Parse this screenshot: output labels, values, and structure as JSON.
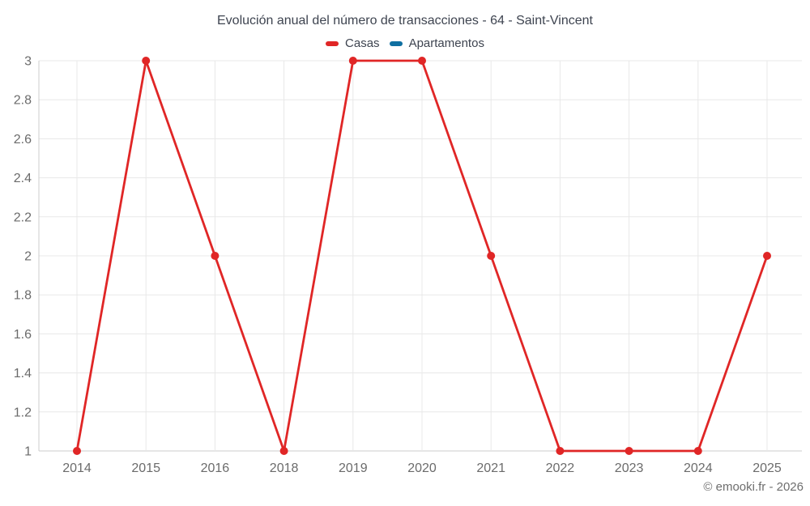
{
  "title": "Evolución anual del número de transacciones - 64 - Saint-Vincent",
  "legend": {
    "items": [
      {
        "label": "Casas",
        "color": "#e02626"
      },
      {
        "label": "Apartamentos",
        "color": "#0f6fa1"
      }
    ]
  },
  "footer": "© emooki.fr - 2026",
  "colors": {
    "grid_line": "#e8e8e8",
    "axis_line": "#cccccc",
    "axis_label": "#6b6b6b",
    "title_text": "#3e4450"
  },
  "chart_data": {
    "type": "line",
    "title": "Evolución anual del número de transacciones - 64 - Saint-Vincent",
    "categories": [
      "2014",
      "2015",
      "2016",
      "2018",
      "2019",
      "2020",
      "2021",
      "2022",
      "2023",
      "2024",
      "2025"
    ],
    "series": [
      {
        "name": "Casas",
        "color": "#e02626",
        "values": [
          1,
          3,
          2,
          1,
          3,
          3,
          2,
          1,
          1,
          1,
          2
        ]
      },
      {
        "name": "Apartamentos",
        "color": "#0f6fa1",
        "values": []
      }
    ],
    "xlabel": "",
    "ylabel": "",
    "ylim": [
      1,
      3
    ],
    "yticks": [
      1,
      1.2,
      1.4,
      1.6,
      1.8,
      2,
      2.2,
      2.4,
      2.6,
      2.8,
      3
    ],
    "grid": true,
    "legend_position": "top",
    "marker": "circle"
  }
}
